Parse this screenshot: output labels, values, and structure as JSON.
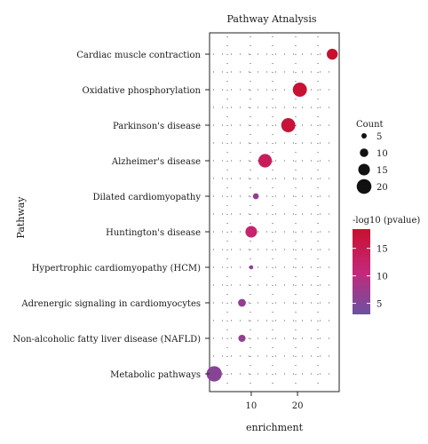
{
  "chart_data": {
    "type": "scatter",
    "title": "Pathway Atnalysis",
    "xlabel": "enrichment",
    "ylabel": "Pathway",
    "x_ticks": [
      10,
      20
    ],
    "xlim": [
      1,
      29
    ],
    "grid": true,
    "pathways": [
      {
        "name": "Cardiac muscle contraction",
        "enrichment": 27.5,
        "count": 14,
        "neg_log10_pvalue": 18.5
      },
      {
        "name": "Oxidative phosphorylation",
        "enrichment": 20.5,
        "count": 19,
        "neg_log10_pvalue": 18.0
      },
      {
        "name": "Parkinson's disease",
        "enrichment": 18.0,
        "count": 19,
        "neg_log10_pvalue": 17.5
      },
      {
        "name": "Alzheimer's disease",
        "enrichment": 13.0,
        "count": 18,
        "neg_log10_pvalue": 14.0
      },
      {
        "name": "Dilated cardiomyopathy",
        "enrichment": 11.0,
        "count": 6,
        "neg_log10_pvalue": 6.5
      },
      {
        "name": "Huntington's disease",
        "enrichment": 10.0,
        "count": 15,
        "neg_log10_pvalue": 12.0
      },
      {
        "name": "Hypertrophic cardiomyopathy (HCM)",
        "enrichment": 10.0,
        "count": 3,
        "neg_log10_pvalue": 6.0
      },
      {
        "name": "Adrenergic signaling in cardiomyocytes",
        "enrichment": 8.0,
        "count": 9,
        "neg_log10_pvalue": 6.5
      },
      {
        "name": "Non-alcoholic fatty liver disease (NAFLD)",
        "enrichment": 8.0,
        "count": 8,
        "neg_log10_pvalue": 6.5
      },
      {
        "name": "Metabolic pathways",
        "enrichment": 2.0,
        "count": 21,
        "neg_log10_pvalue": 5.5
      }
    ],
    "size_legend": {
      "title": "Count",
      "values": [
        5,
        10,
        15,
        20
      ]
    },
    "color_legend": {
      "title": "-log10 (pvalue)",
      "ticks": [
        5,
        10,
        15
      ],
      "range": [
        3,
        18.5
      ],
      "low_color": "#6a52a3",
      "mid_color": "#c4287a",
      "high_color": "#c8102e"
    },
    "legend_position": "right"
  }
}
